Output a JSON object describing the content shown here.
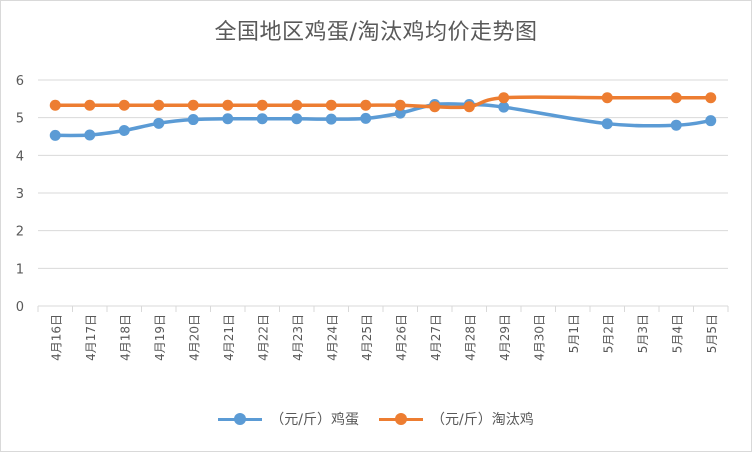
{
  "chart_data": {
    "type": "line",
    "title": "全国地区鸡蛋/淘汰鸡均价走势图",
    "categories": [
      "4月16日",
      "4月17日",
      "4月18日",
      "4月19日",
      "4月20日",
      "4月21日",
      "4月22日",
      "4月23日",
      "4月24日",
      "4月25日",
      "4月26日",
      "4月27日",
      "4月28日",
      "4月29日",
      "4月30日",
      "5月1日",
      "5月2日",
      "5月3日",
      "5月4日",
      "5月5日"
    ],
    "ylim": [
      0,
      6
    ],
    "yticks": [
      0,
      1,
      2,
      3,
      4,
      5,
      6
    ],
    "grid": true,
    "legend_position": "bottom",
    "series": [
      {
        "name": "（元/斤）鸡蛋",
        "color": "#5b9bd5",
        "values": [
          4.53,
          4.54,
          4.66,
          4.85,
          4.95,
          4.97,
          4.97,
          4.97,
          4.96,
          4.98,
          5.12,
          5.35,
          5.35,
          5.28,
          null,
          null,
          4.84,
          null,
          4.8,
          4.92
        ]
      },
      {
        "name": "（元/斤）淘汰鸡",
        "color": "#ed7d31",
        "values": [
          5.33,
          5.33,
          5.33,
          5.33,
          5.33,
          5.33,
          5.33,
          5.33,
          5.33,
          5.33,
          5.33,
          5.29,
          5.29,
          5.53,
          null,
          null,
          5.53,
          null,
          5.53,
          5.53
        ]
      }
    ]
  }
}
